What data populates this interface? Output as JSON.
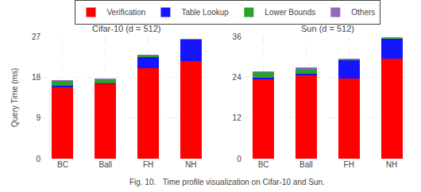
{
  "chart_data": [
    {
      "type": "bar",
      "stacked": true,
      "grid": true,
      "legend": "top",
      "title": "Cifar-10 (d = 512)",
      "ylabel": "Query Time (ms)",
      "annotations": [
        "Fig. 10.   Time profile visualization on Cifar-10 and Sun."
      ],
      "categories": [
        "BC",
        "Ball",
        "FH",
        "NH"
      ],
      "series": [
        {
          "name": "Verification",
          "color": "#FF0000",
          "values": [
            15.8,
            16.5,
            20.0,
            21.5
          ]
        },
        {
          "name": "Table Lookup",
          "color": "#1414FF",
          "values": [
            0.3,
            0.2,
            2.5,
            4.8
          ]
        },
        {
          "name": "Lower Bounds",
          "color": "#2CA02C",
          "values": [
            1.2,
            0.8,
            0.3,
            0.05
          ]
        },
        {
          "name": "Others",
          "color": "#9467BD",
          "values": [
            0.05,
            0.05,
            0.05,
            0.05
          ]
        }
      ],
      "ylim": [
        0,
        27
      ],
      "yticks": [
        0,
        9,
        18,
        27
      ]
    },
    {
      "type": "bar",
      "stacked": true,
      "grid": true,
      "title": "Sun (d = 512)",
      "categories": [
        "BC",
        "Ball",
        "FH",
        "NH"
      ],
      "series": [
        {
          "name": "Verification",
          "color": "#FF0000",
          "values": [
            23.5,
            24.5,
            23.5,
            29.5
          ]
        },
        {
          "name": "Table Lookup",
          "color": "#1414FF",
          "values": [
            0.3,
            0.5,
            5.5,
            6.0
          ]
        },
        {
          "name": "Lower Bounds",
          "color": "#2CA02C",
          "values": [
            1.8,
            1.5,
            0.3,
            0.1
          ]
        },
        {
          "name": "Others",
          "color": "#9467BD",
          "values": [
            0.05,
            0.3,
            0.05,
            0.05
          ]
        }
      ],
      "ylim": [
        0,
        36
      ],
      "yticks": [
        0,
        12,
        24,
        36
      ]
    }
  ]
}
